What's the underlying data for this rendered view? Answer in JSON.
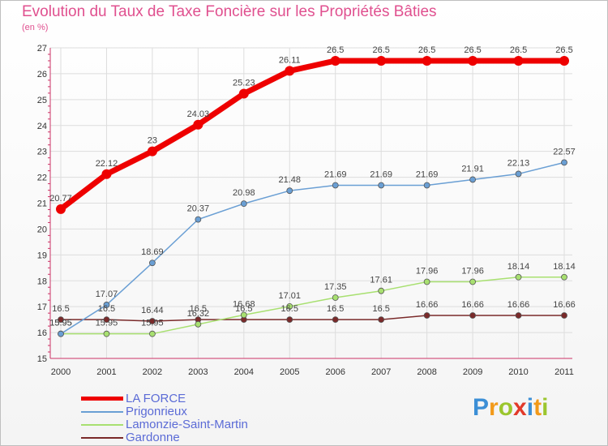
{
  "chart_data": {
    "type": "line",
    "title": "Evolution du Taux de Taxe Foncière sur les Propriétés Bâties",
    "ylabel": "(en %)",
    "categories": [
      "2000",
      "2001",
      "2002",
      "2003",
      "2004",
      "2005",
      "2006",
      "2007",
      "2008",
      "2009",
      "2010",
      "2011"
    ],
    "ylim": [
      15,
      27
    ],
    "yticks": [
      "15",
      "16",
      "17",
      "18",
      "19",
      "20",
      "21",
      "22",
      "23",
      "24",
      "25",
      "26",
      "27"
    ],
    "grid": true,
    "series": [
      {
        "name": "LA FORCE",
        "color": "#ee0000",
        "values": [
          20.77,
          22.12,
          23,
          24.03,
          25.23,
          26.11,
          26.5,
          26.5,
          26.5,
          26.5,
          26.5,
          26.5
        ],
        "labels": [
          "20.77",
          "22.12",
          "23",
          "24.03",
          "25.23",
          "26.11",
          "26.5",
          "26.5",
          "26.5",
          "26.5",
          "26.5",
          "26.5"
        ]
      },
      {
        "name": "Prigonrieux",
        "color": "#6a9fd4",
        "values": [
          15.95,
          17.07,
          18.69,
          20.37,
          20.98,
          21.48,
          21.69,
          21.69,
          21.69,
          21.91,
          22.13,
          22.57
        ],
        "labels": [
          "15.95",
          "17.07",
          "18.69",
          "20.37",
          "20.98",
          "21.48",
          "21.69",
          "21.69",
          "21.69",
          "21.91",
          "22.13",
          "22.57"
        ]
      },
      {
        "name": "Lamonzie-Saint-Martin",
        "color": "#a8e070",
        "values": [
          15.95,
          15.95,
          15.95,
          16.32,
          16.68,
          17.01,
          17.35,
          17.61,
          17.96,
          17.96,
          18.14,
          18.14
        ],
        "labels": [
          "15.95",
          "15.95",
          "15.95",
          "16.32",
          "16.68",
          "17.01",
          "17.35",
          "17.61",
          "17.96",
          "17.96",
          "18.14",
          "18.14"
        ]
      },
      {
        "name": "Gardonne",
        "color": "#7a2a2a",
        "values": [
          16.5,
          16.5,
          16.44,
          16.5,
          16.5,
          16.5,
          16.5,
          16.5,
          16.66,
          16.66,
          16.66,
          16.66
        ],
        "labels": [
          "16.5",
          "16.5",
          "16.44",
          "16.5",
          "16.5",
          "16.5",
          "16.5",
          "16.5",
          "16.66",
          "16.66",
          "16.66",
          "16.66"
        ]
      }
    ]
  },
  "legend": [
    "LA FORCE",
    "Prigonrieux",
    "Lamonzie-Saint-Martin",
    "Gardonne"
  ],
  "logo": {
    "text": "Proxiti",
    "letters": [
      "P",
      "r",
      "o",
      "x",
      "i",
      "t",
      "i"
    ]
  }
}
